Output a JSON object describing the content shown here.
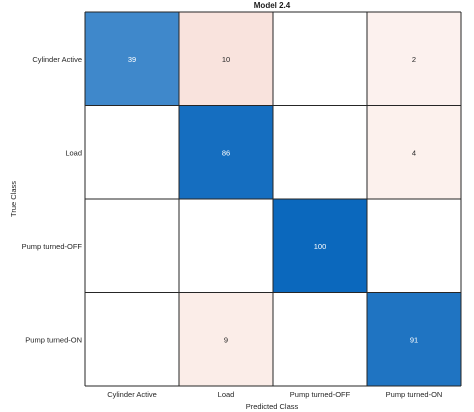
{
  "chart_data": {
    "type": "heatmap",
    "title": "Model 2.4",
    "xlabel": "Predicted Class",
    "ylabel": "True Class",
    "x_categories": [
      "Cylinder Active",
      "Load",
      "Pump turned-OFF",
      "Pump turned-ON"
    ],
    "y_categories": [
      "Cylinder Active",
      "Load",
      "Pump turned-OFF",
      "Pump turned-ON"
    ],
    "values": [
      [
        39,
        10,
        null,
        2
      ],
      [
        null,
        86,
        null,
        4
      ],
      [
        null,
        null,
        100,
        null
      ],
      [
        null,
        9,
        null,
        91
      ]
    ],
    "colors": {
      "correct_high": "#0b68bd",
      "correct_low": "#e8f1fa",
      "error_high": "#dc5a3c",
      "error_low": "#fdf5f2",
      "grid": "#262626"
    }
  }
}
